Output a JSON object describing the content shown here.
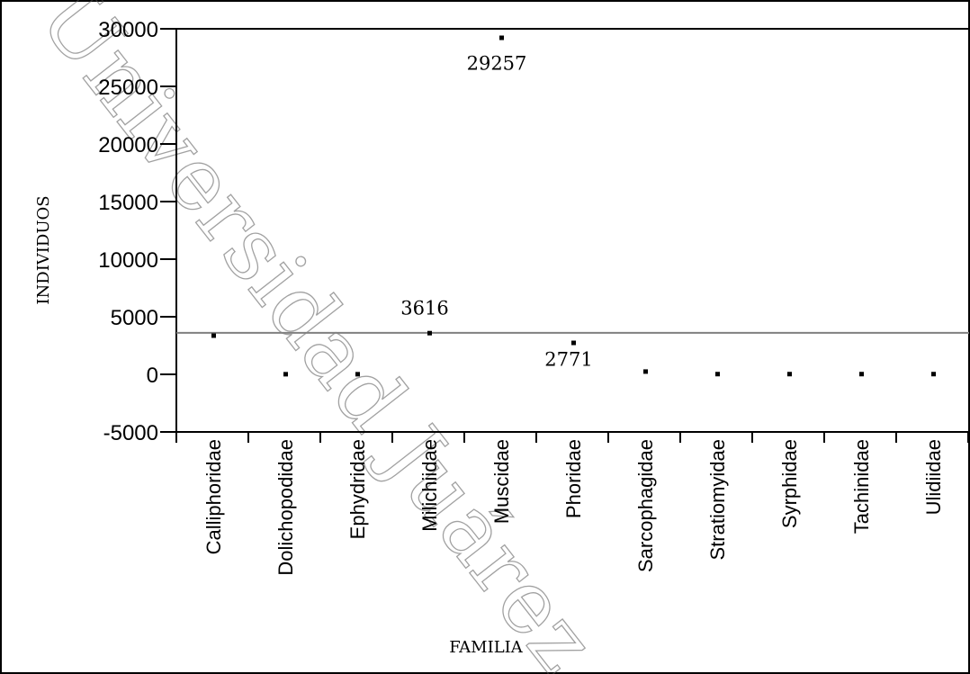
{
  "watermark": "Universidad Juárez",
  "chart_data": {
    "type": "scatter",
    "xlabel": "FAMILIA",
    "ylabel": "INDIVIDUOS",
    "categories": [
      "Calliphoridae",
      "Dolichopodidae",
      "Ephydridae",
      "Milichiidae",
      "Muscidae",
      "Phoridae",
      "Sarcophagidae",
      "Stratiomyidae",
      "Syrphidae",
      "Tachinidae",
      "Ulidiidae"
    ],
    "values": [
      3400,
      50,
      50,
      3616,
      29257,
      2771,
      280,
      60,
      60,
      60,
      60
    ],
    "data_labels": [
      {
        "category": "Milichiidae",
        "text": "3616"
      },
      {
        "category": "Muscidae",
        "text": "29257"
      },
      {
        "category": "Phoridae",
        "text": "2771"
      }
    ],
    "reference_line": 3600,
    "ylim": [
      -5000,
      30000
    ],
    "yticks": [
      "-5000",
      "0",
      "5000",
      "10000",
      "15000",
      "20000",
      "25000",
      "30000"
    ],
    "grid": false,
    "legend": false
  }
}
